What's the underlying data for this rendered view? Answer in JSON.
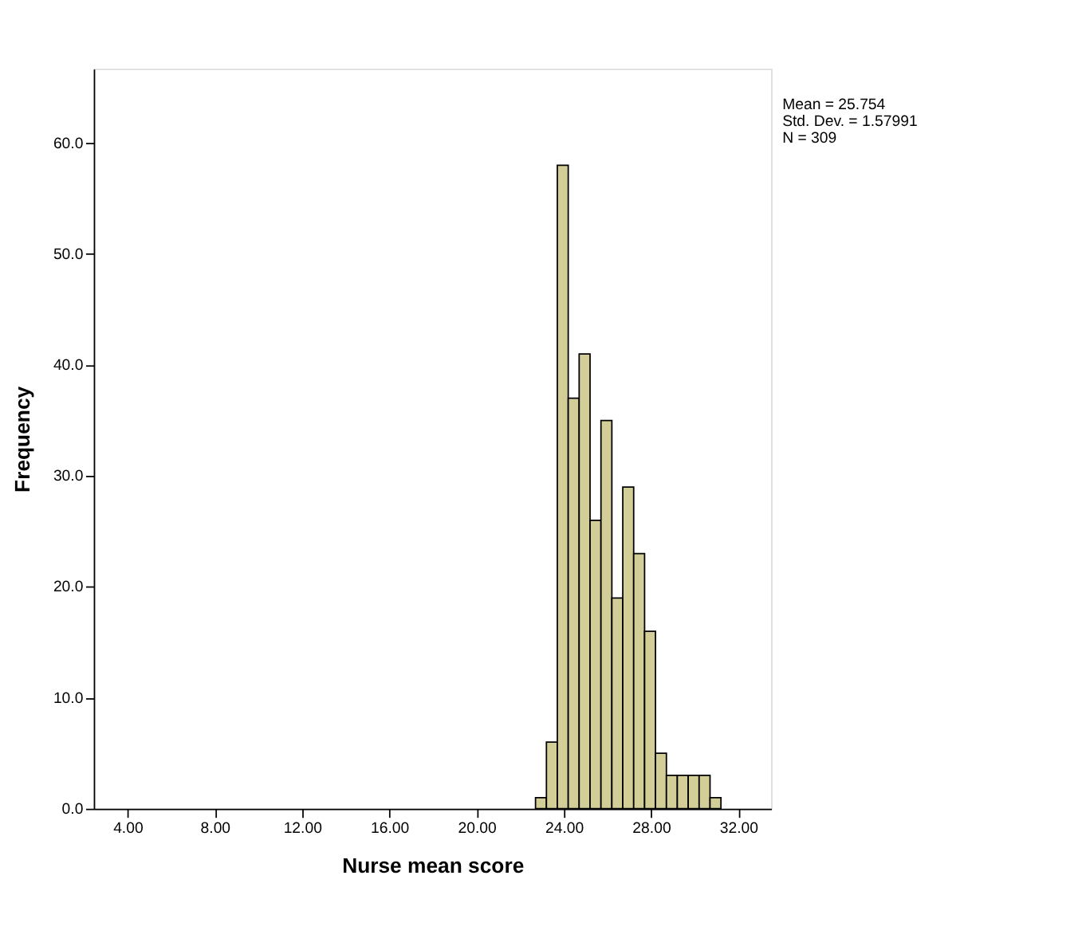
{
  "chart_data": {
    "type": "histogram",
    "xlabel": "Nurse mean score",
    "ylabel": "Frequency",
    "bins": [
      22.7,
      23.2,
      23.7,
      24.2,
      24.7,
      25.2,
      25.7,
      26.2,
      26.7,
      27.2,
      27.7,
      28.2,
      28.7,
      29.2,
      29.7,
      30.2,
      30.7,
      31.2
    ],
    "values": [
      1,
      6,
      58,
      37,
      41,
      26,
      35,
      19,
      29,
      23,
      16,
      5,
      3,
      3,
      3,
      3,
      1
    ],
    "color": "#d3ce97",
    "xlim": [
      2.45,
      33.5
    ],
    "xticks": [
      {
        "value": 4,
        "label": "4.00"
      },
      {
        "value": 8,
        "label": "8.00"
      },
      {
        "value": 12,
        "label": "12.00"
      },
      {
        "value": 16,
        "label": "16.00"
      },
      {
        "value": 20,
        "label": "20.00"
      },
      {
        "value": 24,
        "label": "24.00"
      },
      {
        "value": 28,
        "label": "28.00"
      },
      {
        "value": 32,
        "label": "32.00"
      }
    ],
    "ylim": [
      0,
      66.7
    ],
    "yticks": [
      {
        "value": 0,
        "label": "0.0"
      },
      {
        "value": 10,
        "label": "10.0"
      },
      {
        "value": 20,
        "label": "20.0"
      },
      {
        "value": 30,
        "label": "30.0"
      },
      {
        "value": 40,
        "label": "40.0"
      },
      {
        "value": 50,
        "label": "50.0"
      },
      {
        "value": 60,
        "label": "60.0"
      }
    ],
    "grid": false,
    "annotations": [
      "Mean = 25.754",
      "Std. Dev. = 1.57991",
      "N = 309"
    ]
  }
}
